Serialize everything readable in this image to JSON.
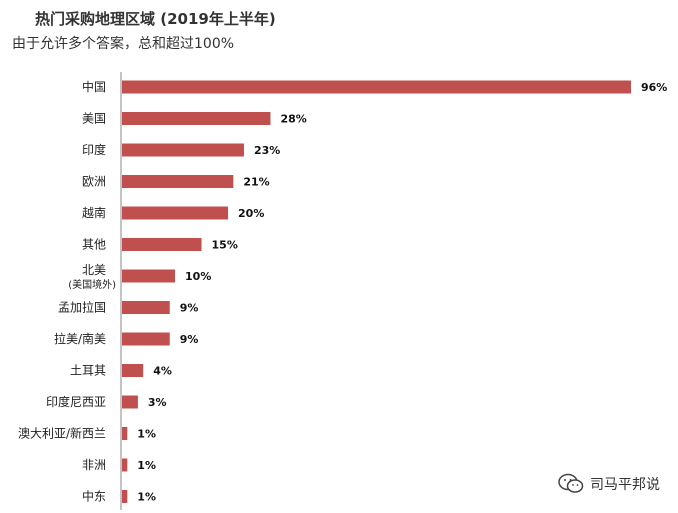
{
  "chart_data": {
    "type": "bar",
    "orientation": "horizontal",
    "title": "热门采购地理区域 (2019年上半年)",
    "subtitle": "由于允许多个答案，总和超过100%",
    "categories": [
      "中国",
      "美国",
      "印度",
      "欧洲",
      "越南",
      "其他",
      "北美",
      "孟加拉国",
      "拉美/南美",
      "土耳其",
      "印度尼西亚",
      "澳大利亚/新西兰",
      "非洲",
      "中东"
    ],
    "category_sublabels": [
      "",
      "",
      "",
      "",
      "",
      "",
      "(美国境外)",
      "",
      "",
      "",
      "",
      "",
      "",
      ""
    ],
    "values": [
      96,
      28,
      23,
      21,
      20,
      15,
      10,
      9,
      9,
      4,
      3,
      1,
      1,
      1
    ],
    "value_labels": [
      "96%",
      "28%",
      "23%",
      "21%",
      "20%",
      "15%",
      "10%",
      "9%",
      "9%",
      "4%",
      "3%",
      "1%",
      "1%",
      "1%"
    ],
    "xlim": [
      0,
      100
    ],
    "bar_color": "#c0504d",
    "grid": false
  },
  "watermark": {
    "text": "司马平邦说",
    "icon": "wechat-icon"
  }
}
